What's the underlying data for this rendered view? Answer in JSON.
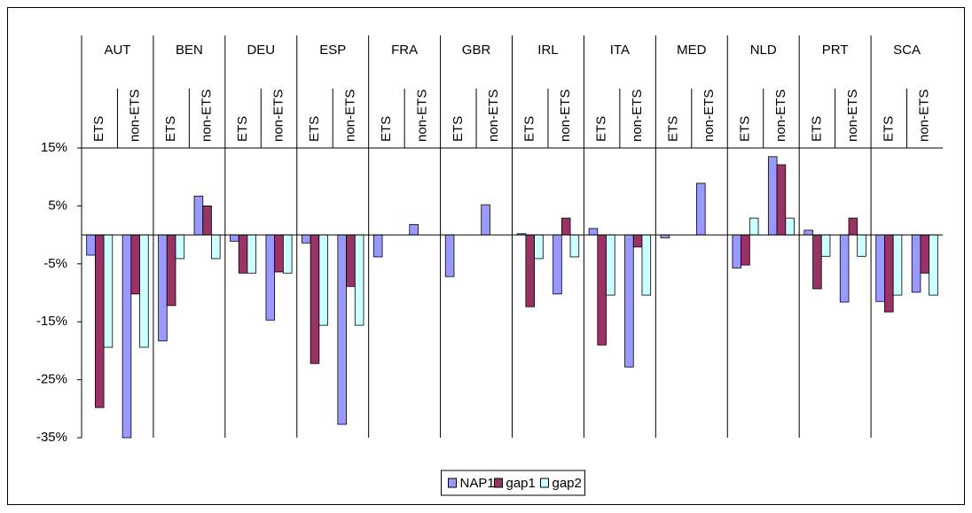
{
  "chart_data": {
    "type": "bar",
    "groups": [
      "AUT",
      "BEN",
      "DEU",
      "ESP",
      "FRA",
      "GBR",
      "IRL",
      "ITA",
      "MED",
      "NLD",
      "PRT",
      "SCA"
    ],
    "categories": [
      "ETS",
      "non-ETS",
      "ETS",
      "non-ETS",
      "ETS",
      "non-ETS",
      "ETS",
      "non-ETS",
      "ETS",
      "non-ETS",
      "ETS",
      "non-ETS",
      "ETS",
      "non-ETS",
      "ETS",
      "non-ETS",
      "ETS",
      "non-ETS",
      "ETS",
      "non-ETS",
      "ETS",
      "non-ETS",
      "ETS",
      "non-ETS"
    ],
    "series": [
      {
        "name": "NAP1",
        "color": "#9999ff",
        "values": [
          -3.5,
          -35,
          -18.3,
          6.7,
          -1.1,
          -14.7,
          -1.4,
          -32.7,
          -3.8,
          1.8,
          -7.2,
          5.2,
          0.2,
          -10.2,
          1.1,
          -22.8,
          -0.5,
          8.9,
          -5.7,
          13.5,
          0.8,
          -11.6,
          -11.5,
          -9.9
        ]
      },
      {
        "name": "gap1",
        "color": "#993366",
        "values": [
          -29.8,
          -10.2,
          -12.2,
          5.0,
          -6.6,
          -6.4,
          -22.2,
          -8.9,
          null,
          null,
          null,
          null,
          -12.4,
          2.9,
          -19,
          -2.1,
          null,
          null,
          -5.2,
          12.1,
          -9.3,
          2.9,
          -13.3,
          -6.6
        ]
      },
      {
        "name": "gap2",
        "color": "#ccffff",
        "values": [
          -19.4,
          -19.4,
          -4.1,
          -4.1,
          -6.6,
          -6.6,
          -15.6,
          -15.6,
          null,
          null,
          null,
          null,
          -4.1,
          -3.8,
          -10.4,
          -10.4,
          null,
          null,
          2.9,
          2.9,
          -3.7,
          -3.7,
          -10.4,
          -10.4
        ]
      }
    ],
    "ylim": [
      -35,
      15
    ],
    "yticks": [
      {
        "value": 15,
        "label": "15%"
      },
      {
        "value": 5,
        "label": "5%"
      },
      {
        "value": -5,
        "label": "-5%"
      },
      {
        "value": -15,
        "label": "-15%"
      },
      {
        "value": -25,
        "label": "-25%"
      },
      {
        "value": -35,
        "label": "-35%"
      }
    ],
    "legend": "bottom"
  }
}
